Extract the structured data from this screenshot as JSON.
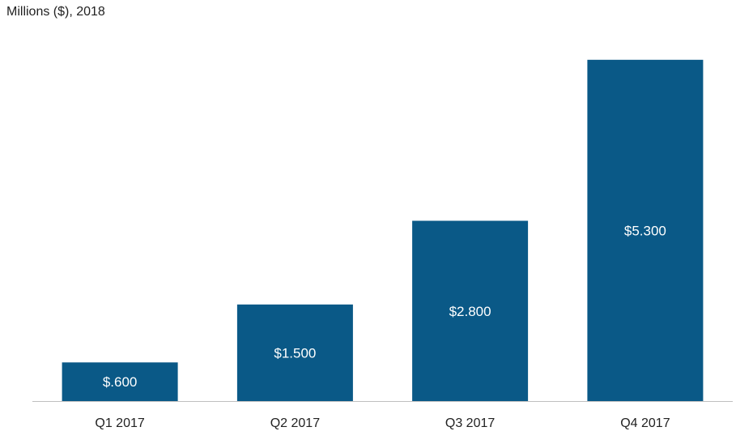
{
  "chart_data": {
    "type": "bar",
    "subtitle": "Millions ($), 2018",
    "categories": [
      "Q1 2017",
      "Q2 2017",
      "Q3 2017",
      "Q4 2017"
    ],
    "values": [
      0.6,
      1.5,
      2.8,
      5.3
    ],
    "data_labels": [
      "$.600",
      "$1.500",
      "$2.800",
      "$5.300"
    ],
    "ylim": [
      0,
      5.6
    ],
    "grid": false,
    "legend": "none",
    "bar_color": "#0a5987",
    "axis_color": "#bfbfbf"
  }
}
